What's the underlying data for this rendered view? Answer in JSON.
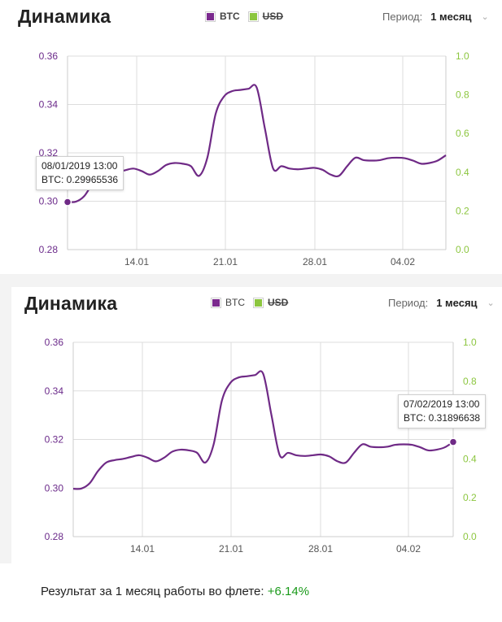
{
  "header": {
    "title": "Динамика",
    "legend": [
      {
        "label": "BTC",
        "color": "#7b2a8e"
      },
      {
        "label": "USD",
        "color": "#8cc63f"
      }
    ],
    "period_label": "Период:",
    "period_value": "1 месяц"
  },
  "tooltips": [
    {
      "date": "08/01/2019 13:00",
      "value": "BTC: 0.29965536"
    },
    {
      "date": "07/02/2019 13:00",
      "value": "BTC: 0.31896638"
    }
  ],
  "result": {
    "text": "Результат за 1 месяц работы во флете:",
    "value": "+6.14%"
  },
  "colors": {
    "btc_line": "#6f2a86",
    "usd_axis": "#8cc63f",
    "left_axis": "#6b2a8a",
    "grid": "#dddddd",
    "positive": "#1a9a1a"
  },
  "chart_data": [
    {
      "type": "line",
      "title": "",
      "x_ticks": [
        "14.01",
        "21.01",
        "28.01",
        "04.02"
      ],
      "y_left_ticks": [
        "0.28",
        "0.30",
        "0.32",
        "0.34",
        "0.36"
      ],
      "y_right_ticks": [
        "0.0",
        "0.2",
        "0.4",
        "0.6",
        "0.8",
        "1.0"
      ],
      "ylim_left": [
        0.28,
        0.36
      ],
      "ylim_right": [
        0,
        1
      ],
      "grid": true,
      "x_days": [
        0,
        0.5,
        1,
        1.5,
        2,
        2.5,
        3,
        3.5,
        4,
        4.5,
        5,
        5.5,
        6,
        6.5,
        7,
        7.5,
        8,
        8.5,
        9,
        9.5,
        10,
        10.5,
        11,
        11.5,
        12,
        12.5,
        13,
        13.5,
        14,
        14.5,
        15,
        15.5,
        16,
        16.5,
        17,
        17.5,
        18,
        18.5,
        19,
        19.5,
        20,
        20.5,
        21,
        21.5,
        22,
        22.5,
        23,
        23.5,
        24,
        24.5,
        25,
        25.5,
        26,
        26.5,
        27,
        27.5,
        28,
        28.5,
        29,
        29.5,
        30
      ],
      "series": [
        {
          "values": [
            0.2997,
            0.2998,
            0.302,
            0.307,
            0.3105,
            0.3115,
            0.312,
            0.3128,
            0.3135,
            0.3125,
            0.311,
            0.3125,
            0.315,
            0.3158,
            0.3155,
            0.3145,
            0.3105,
            0.318,
            0.336,
            0.3432,
            0.3455,
            0.346,
            0.3465,
            0.347,
            0.33,
            0.3135,
            0.3145,
            0.3135,
            0.3132,
            0.3135,
            0.3138,
            0.313,
            0.311,
            0.3105,
            0.3145,
            0.318,
            0.317,
            0.3168,
            0.317,
            0.3178,
            0.318,
            0.3178,
            0.3168,
            0.3155,
            0.3158,
            0.3168,
            0.319
          ],
          "x_index": [
            0,
            0.7,
            1.4,
            2.1,
            2.8,
            3.5,
            4.2,
            4.9,
            5.6,
            6.3,
            7,
            7.7,
            8.4,
            9.1,
            9.8,
            10.5,
            11.2,
            11.9,
            12.6,
            13.3,
            14,
            14.7,
            15.4,
            16.1,
            16.8,
            17.5,
            18.2,
            18.9,
            19.6,
            20.3,
            21,
            21.7,
            22.4,
            23.1,
            23.8,
            24.5,
            25.2,
            25.9,
            26.6,
            27.3,
            28,
            28.7,
            29.4,
            30.1,
            30.8,
            31.5,
            32.2
          ]
        }
      ],
      "highlight_point": {
        "x_index": 0,
        "value": 0.29965536
      },
      "tooltip_ref": 0
    },
    {
      "type": "line",
      "title": "",
      "x_ticks": [
        "14.01",
        "21.01",
        "28.01",
        "04.02"
      ],
      "y_left_ticks": [
        "0.28",
        "0.30",
        "0.32",
        "0.34",
        "0.36"
      ],
      "y_right_ticks": [
        "0.0",
        "0.2",
        "0.4",
        "0.6",
        "0.8",
        "1.0"
      ],
      "ylim_left": [
        0.28,
        0.36
      ],
      "ylim_right": [
        0,
        1
      ],
      "grid": true,
      "series": [
        {
          "values": [
            0.2997,
            0.2998,
            0.302,
            0.307,
            0.3105,
            0.3115,
            0.312,
            0.3128,
            0.3135,
            0.3125,
            0.311,
            0.3125,
            0.315,
            0.3158,
            0.3155,
            0.3145,
            0.3105,
            0.318,
            0.336,
            0.3432,
            0.3455,
            0.346,
            0.3465,
            0.347,
            0.33,
            0.3135,
            0.3145,
            0.3135,
            0.3132,
            0.3135,
            0.3138,
            0.313,
            0.311,
            0.3105,
            0.3145,
            0.318,
            0.317,
            0.3168,
            0.317,
            0.3178,
            0.318,
            0.3178,
            0.3168,
            0.3155,
            0.3158,
            0.3168,
            0.319
          ],
          "x_index": [
            0,
            0.7,
            1.4,
            2.1,
            2.8,
            3.5,
            4.2,
            4.9,
            5.6,
            6.3,
            7,
            7.7,
            8.4,
            9.1,
            9.8,
            10.5,
            11.2,
            11.9,
            12.6,
            13.3,
            14,
            14.7,
            15.4,
            16.1,
            16.8,
            17.5,
            18.2,
            18.9,
            19.6,
            20.3,
            21,
            21.7,
            22.4,
            23.1,
            23.8,
            24.5,
            25.2,
            25.9,
            26.6,
            27.3,
            28,
            28.7,
            29.4,
            30.1,
            30.8,
            31.5,
            32.2
          ]
        }
      ],
      "highlight_point": {
        "x_index": 32.2,
        "value": 0.31896638
      },
      "tooltip_ref": 1
    }
  ]
}
